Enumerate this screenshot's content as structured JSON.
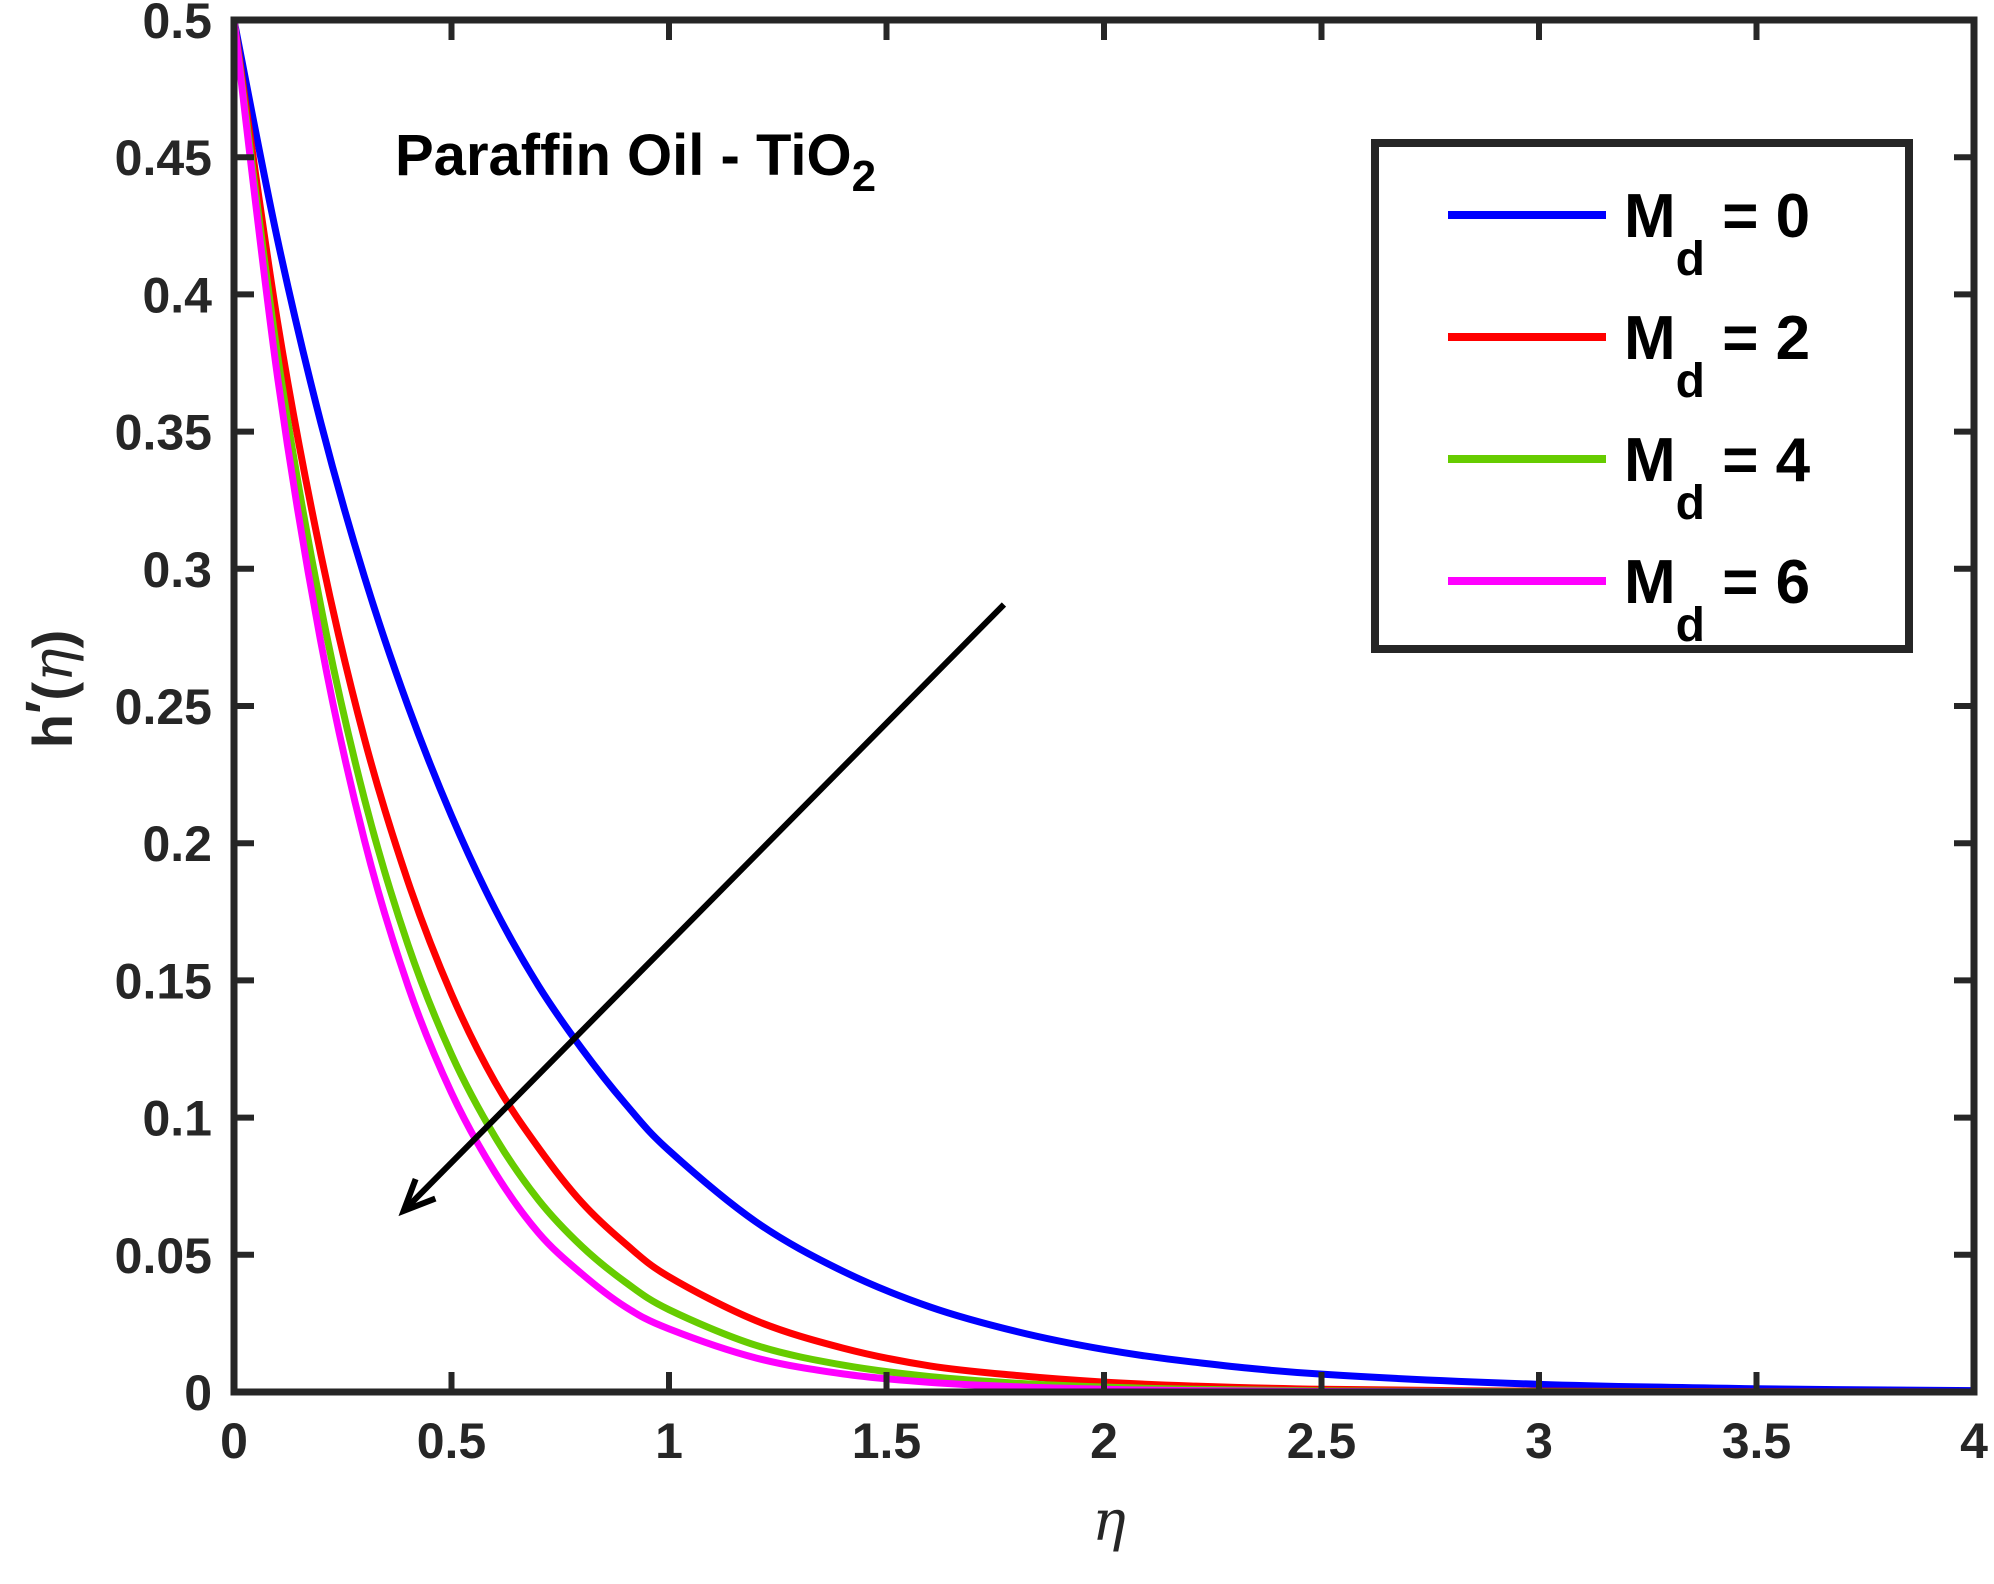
{
  "chart_data": {
    "type": "line",
    "title": "",
    "xlabel": "η",
    "ylabel": {
      "prefix": "h",
      "prime": "′",
      "open": "(",
      "var": "η",
      "close": ")"
    },
    "xlim": [
      0,
      4
    ],
    "ylim": [
      0,
      0.5
    ],
    "xticks": [
      0,
      0.5,
      1,
      1.5,
      2,
      2.5,
      3,
      3.5,
      4
    ],
    "xtick_labels": [
      "0",
      "0.5",
      "1",
      "1.5",
      "2",
      "2.5",
      "3",
      "3.5",
      "4"
    ],
    "yticks": [
      0,
      0.05,
      0.1,
      0.15,
      0.2,
      0.25,
      0.3,
      0.35,
      0.4,
      0.45,
      0.5
    ],
    "ytick_labels": [
      "0",
      "0.05",
      "0.1",
      "0.15",
      "0.2",
      "0.25",
      "0.3",
      "0.35",
      "0.4",
      "0.45",
      "0.5"
    ],
    "grid": false,
    "legend_position": "top-right",
    "annotation": {
      "text": "Paraffin Oil - TiO",
      "subscript": "2"
    },
    "arrow": {
      "from": [
        1.77,
        0.287
      ],
      "to": [
        0.39,
        0.066
      ],
      "meaning": "increasing M_d"
    },
    "series": [
      {
        "name": "M_d = 0",
        "legend": {
          "var": "M",
          "sub": "d",
          "rest": " = 0"
        },
        "color": "#0000ff",
        "x": [
          0,
          0.1,
          0.2,
          0.3,
          0.4,
          0.5,
          0.6,
          0.7,
          0.8,
          0.9,
          1.0,
          1.2,
          1.4,
          1.6,
          1.8,
          2.0,
          2.2,
          2.5,
          3.0,
          3.5,
          4.0
        ],
        "y": [
          0.5,
          0.42,
          0.353,
          0.297,
          0.25,
          0.21,
          0.176,
          0.148,
          0.125,
          0.105,
          0.088,
          0.062,
          0.044,
          0.031,
          0.022,
          0.0155,
          0.011,
          0.0065,
          0.0028,
          0.0012,
          0.0005
        ]
      },
      {
        "name": "M_d = 2",
        "legend": {
          "var": "M",
          "sub": "d",
          "rest": " = 2"
        },
        "color": "#ff0000",
        "x": [
          0,
          0.1,
          0.2,
          0.3,
          0.4,
          0.5,
          0.6,
          0.7,
          0.8,
          0.9,
          1.0,
          1.2,
          1.4,
          1.6,
          1.8,
          2.0,
          2.2,
          2.5,
          3.0,
          3.5,
          4.0
        ],
        "y": [
          0.5,
          0.39,
          0.305,
          0.238,
          0.186,
          0.145,
          0.113,
          0.089,
          0.069,
          0.054,
          0.042,
          0.026,
          0.016,
          0.0095,
          0.006,
          0.0036,
          0.0022,
          0.001,
          0.0003,
          0.0001,
          0.0
        ]
      },
      {
        "name": "M_d = 4",
        "legend": {
          "var": "M",
          "sub": "d",
          "rest": " = 4"
        },
        "color": "#66cc00",
        "x": [
          0,
          0.1,
          0.2,
          0.3,
          0.4,
          0.5,
          0.6,
          0.7,
          0.8,
          0.9,
          1.0,
          1.2,
          1.4,
          1.6,
          1.8,
          2.0,
          2.2,
          2.5,
          3.0,
          3.5,
          4.0
        ],
        "y": [
          0.5,
          0.378,
          0.286,
          0.216,
          0.163,
          0.123,
          0.093,
          0.07,
          0.053,
          0.04,
          0.03,
          0.017,
          0.0098,
          0.0056,
          0.0032,
          0.0018,
          0.001,
          0.0004,
          0.0001,
          0.0,
          0.0
        ]
      },
      {
        "name": "M_d = 6",
        "legend": {
          "var": "M",
          "sub": "d",
          "rest": " = 6"
        },
        "color": "#ff00ff",
        "x": [
          0,
          0.1,
          0.2,
          0.3,
          0.4,
          0.5,
          0.6,
          0.7,
          0.8,
          0.9,
          1.0,
          1.2,
          1.4,
          1.6,
          1.8,
          2.0,
          2.2,
          2.5,
          3.0,
          3.5,
          4.0
        ],
        "y": [
          0.5,
          0.37,
          0.273,
          0.201,
          0.148,
          0.109,
          0.08,
          0.058,
          0.043,
          0.031,
          0.023,
          0.0124,
          0.0066,
          0.0035,
          0.0019,
          0.001,
          0.0005,
          0.0002,
          0.0,
          0.0,
          0.0
        ]
      }
    ]
  }
}
